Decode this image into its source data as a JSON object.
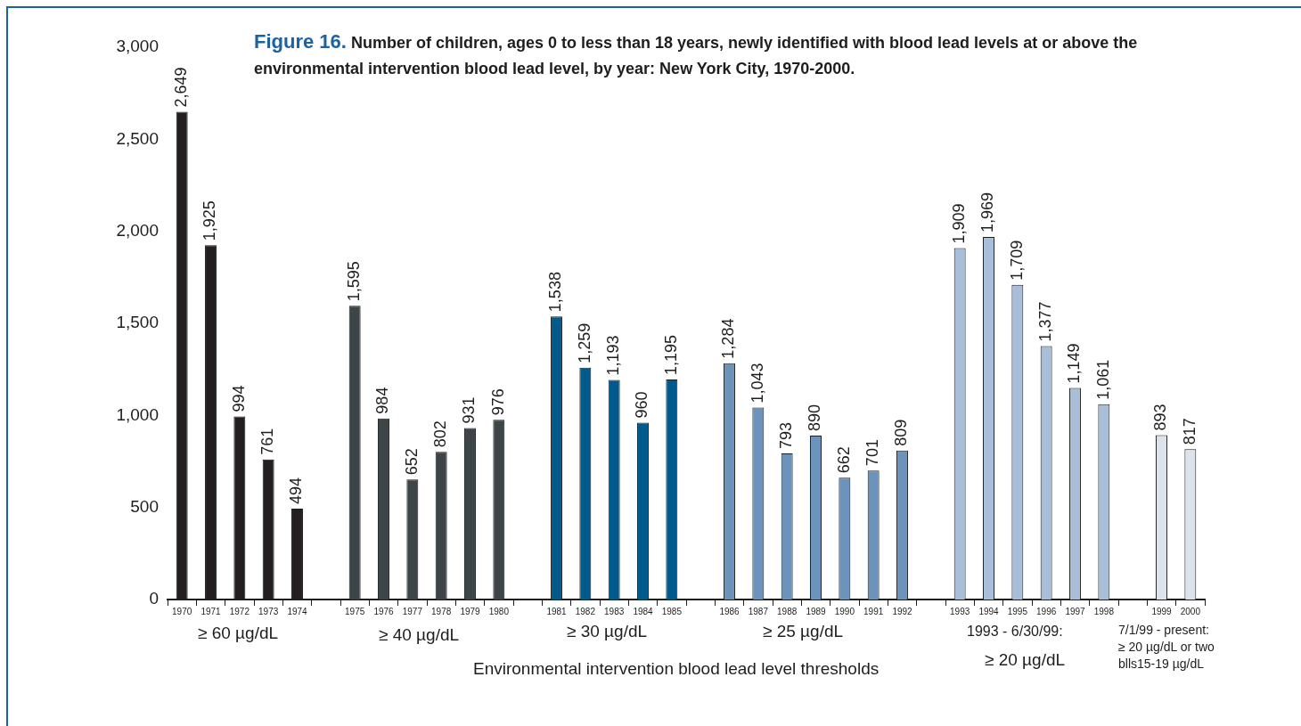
{
  "chart_data": {
    "type": "bar",
    "title": "Figure 16. Number of children, ages 0 to less than 18 years, newly identified with blood lead levels at or above the environmental intervention blood lead level, by year: New York City, 1970-2000.",
    "xlabel": "Environmental intervention blood lead level thresholds",
    "categories": [
      "1970",
      "1971",
      "1972",
      "1973",
      "1974",
      null,
      "1975",
      "1976",
      "1977",
      "1978",
      "1979",
      "1980",
      null,
      "1981",
      "1982",
      "1983",
      "1984",
      "1985",
      null,
      "1986",
      "1987",
      "1988",
      "1989",
      "1990",
      "1991",
      "1992",
      null,
      "1993",
      "1994",
      "1995",
      "1996",
      "1997",
      "1998",
      null,
      "1999",
      "2000"
    ],
    "values": [
      2649,
      1925,
      994,
      761,
      494,
      null,
      1595,
      984,
      652,
      802,
      931,
      976,
      null,
      1538,
      1259,
      1193,
      960,
      1195,
      null,
      1284,
      1043,
      793,
      890,
      662,
      701,
      809,
      null,
      1909,
      1969,
      1709,
      1377,
      1149,
      1061,
      null,
      893,
      817
    ],
    "value_labels": [
      "2,649",
      "1,925",
      "994",
      "761",
      "494",
      null,
      "1,595",
      "984",
      "652",
      "802",
      "931",
      "976",
      null,
      "1,538",
      "1,259",
      "1,193",
      "960",
      "1,195",
      null,
      "1,284",
      "1,043",
      "793",
      "890",
      "662",
      "701",
      "809",
      null,
      "1,909",
      "1,969",
      "1,709",
      "1,377",
      "1,149",
      "1,061",
      null,
      "893",
      "817"
    ],
    "colors": [
      "#231f20",
      "#231f20",
      "#231f20",
      "#231f20",
      "#231f20",
      null,
      "#3d4548",
      "#3d4548",
      "#3d4548",
      "#3d4548",
      "#3d4548",
      "#3d4548",
      null,
      "#005a8c",
      "#005a8c",
      "#005a8c",
      "#005a8c",
      "#005a8c",
      null,
      "#6b93bb",
      "#6b93bb",
      "#6b93bb",
      "#6b93bb",
      "#6b93bb",
      "#6b93bb",
      "#6b93bb",
      null,
      "#a9bfd9",
      "#a9bfd9",
      "#a9bfd9",
      "#a9bfd9",
      "#a9bfd9",
      "#a9bfd9",
      null,
      "#dde3ea",
      "#dde3ea"
    ],
    "ylim": [
      0,
      3000
    ],
    "yticks": [
      0,
      500,
      {
        "value": 1000,
        "label": "1,000"
      },
      {
        "value": 1500,
        "label": "1,500"
      },
      {
        "value": 2000,
        "label": "2,000"
      },
      {
        "value": 2500,
        "label": "2,500"
      },
      {
        "value": 3000,
        "label": "3,000"
      }
    ],
    "annotations": [
      "≥ 60 µg/dL",
      "≥ 40 µg/dL",
      "≥ 30 µg/dL",
      "≥ 25 µg/dL",
      "1993 - 6/30/99:",
      "≥ 20 µg/dL",
      "7/1/99 - present:\n≥ 20 µg/dL or two\nblls15-19 µg/dL"
    ],
    "grid": false,
    "legend": false
  }
}
